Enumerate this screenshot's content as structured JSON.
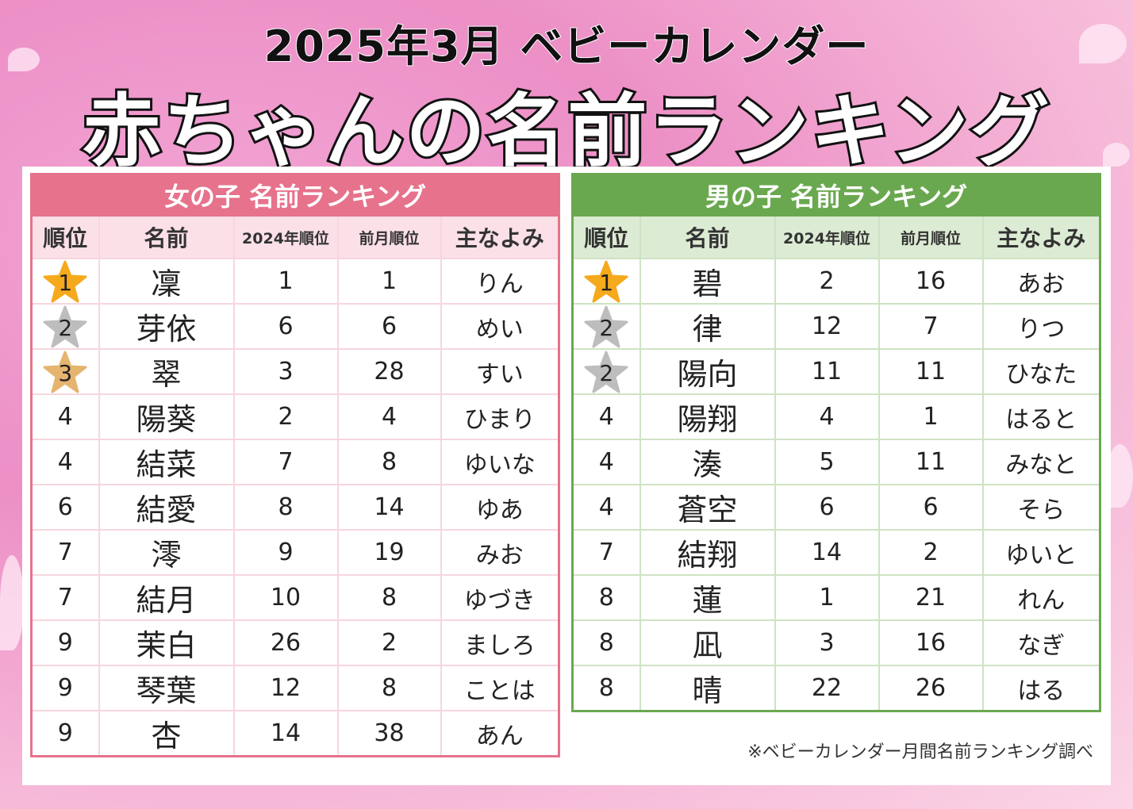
{
  "title_line1": "2025年3月 ベビーカレンダー",
  "title_line2": "赤ちゃんの名前ランキング",
  "columns": [
    "順位",
    "名前",
    "2024年順位",
    "前月順位",
    "主なよみ"
  ],
  "medal_colors": {
    "gold": "#f5a91c",
    "silver": "#bdbdbd",
    "bronze": "#e5b46f"
  },
  "girls": {
    "title": "女の子 名前ランキング",
    "accent": "#e6728c",
    "rows": [
      {
        "rank": "1",
        "medal": "gold",
        "name": "凜",
        "rank2024": "1",
        "prev": "1",
        "reading": "りん"
      },
      {
        "rank": "2",
        "medal": "silver",
        "name": "芽依",
        "rank2024": "6",
        "prev": "6",
        "reading": "めい"
      },
      {
        "rank": "3",
        "medal": "bronze",
        "name": "翠",
        "rank2024": "3",
        "prev": "28",
        "reading": "すい"
      },
      {
        "rank": "4",
        "medal": "",
        "name": "陽葵",
        "rank2024": "2",
        "prev": "4",
        "reading": "ひまり"
      },
      {
        "rank": "4",
        "medal": "",
        "name": "結菜",
        "rank2024": "7",
        "prev": "8",
        "reading": "ゆいな"
      },
      {
        "rank": "6",
        "medal": "",
        "name": "結愛",
        "rank2024": "8",
        "prev": "14",
        "reading": "ゆあ"
      },
      {
        "rank": "7",
        "medal": "",
        "name": "澪",
        "rank2024": "9",
        "prev": "19",
        "reading": "みお"
      },
      {
        "rank": "7",
        "medal": "",
        "name": "結月",
        "rank2024": "10",
        "prev": "8",
        "reading": "ゆづき"
      },
      {
        "rank": "9",
        "medal": "",
        "name": "茉白",
        "rank2024": "26",
        "prev": "2",
        "reading": "ましろ"
      },
      {
        "rank": "9",
        "medal": "",
        "name": "琴葉",
        "rank2024": "12",
        "prev": "8",
        "reading": "ことは"
      },
      {
        "rank": "9",
        "medal": "",
        "name": "杏",
        "rank2024": "14",
        "prev": "38",
        "reading": "あん"
      }
    ]
  },
  "boys": {
    "title": "男の子 名前ランキング",
    "accent": "#6aa84f",
    "rows": [
      {
        "rank": "1",
        "medal": "gold",
        "name": "碧",
        "rank2024": "2",
        "prev": "16",
        "reading": "あお"
      },
      {
        "rank": "2",
        "medal": "silver",
        "name": "律",
        "rank2024": "12",
        "prev": "7",
        "reading": "りつ"
      },
      {
        "rank": "2",
        "medal": "silver",
        "name": "陽向",
        "rank2024": "11",
        "prev": "11",
        "reading": "ひなた"
      },
      {
        "rank": "4",
        "medal": "",
        "name": "陽翔",
        "rank2024": "4",
        "prev": "1",
        "reading": "はると"
      },
      {
        "rank": "4",
        "medal": "",
        "name": "湊",
        "rank2024": "5",
        "prev": "11",
        "reading": "みなと"
      },
      {
        "rank": "4",
        "medal": "",
        "name": "蒼空",
        "rank2024": "6",
        "prev": "6",
        "reading": "そら"
      },
      {
        "rank": "7",
        "medal": "",
        "name": "結翔",
        "rank2024": "14",
        "prev": "2",
        "reading": "ゆいと"
      },
      {
        "rank": "8",
        "medal": "",
        "name": "蓮",
        "rank2024": "1",
        "prev": "21",
        "reading": "れん"
      },
      {
        "rank": "8",
        "medal": "",
        "name": "凪",
        "rank2024": "3",
        "prev": "16",
        "reading": "なぎ"
      },
      {
        "rank": "8",
        "medal": "",
        "name": "晴",
        "rank2024": "22",
        "prev": "26",
        "reading": "はる"
      }
    ]
  },
  "source_note": "※ベビーカレンダー月間名前ランキング調べ"
}
